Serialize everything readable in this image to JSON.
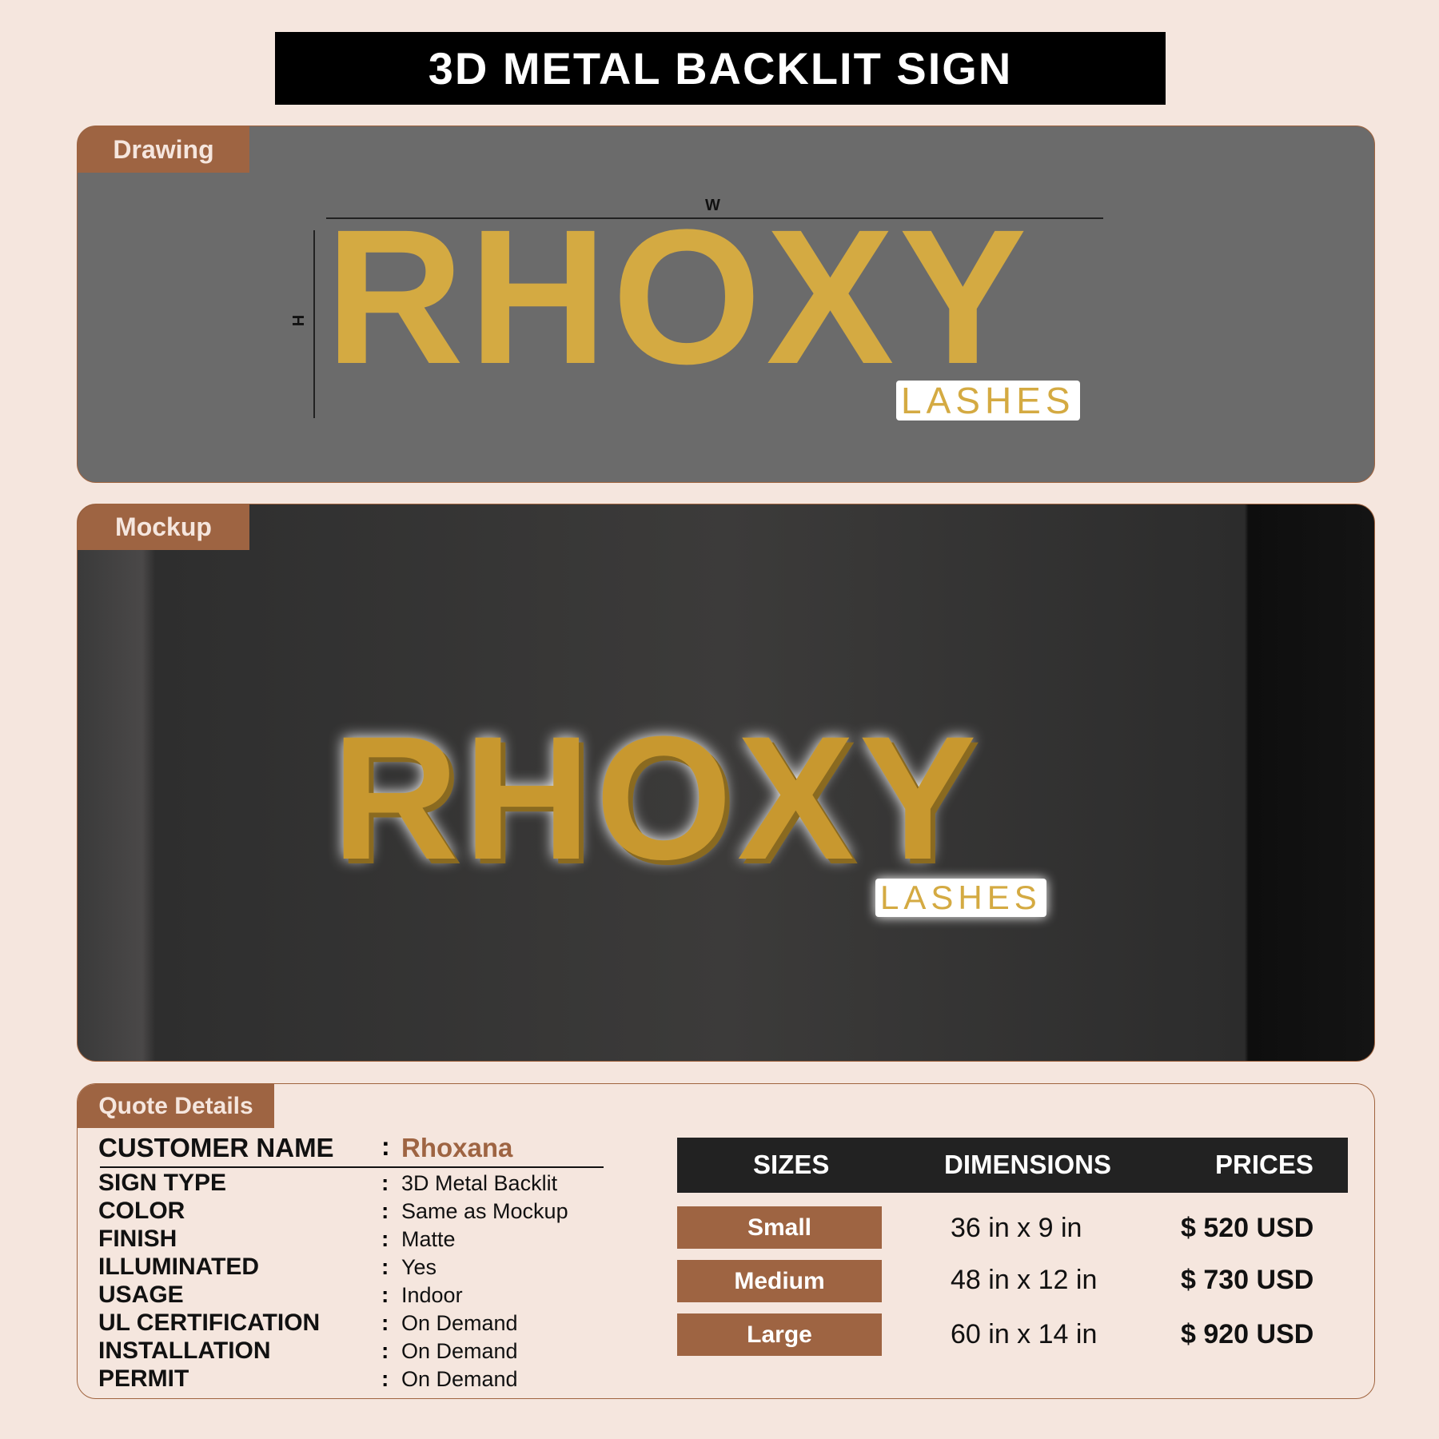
{
  "title": "3D METAL BACKLIT SIGN",
  "drawing": {
    "tab": "Drawing",
    "w_label": "W",
    "h_label": "H",
    "logo_main": "RHOXY",
    "logo_sub": "LASHES"
  },
  "mockup": {
    "tab": "Mockup",
    "logo_main": "RHOXY",
    "logo_sub": "LASHES"
  },
  "quote": {
    "tab": "Quote Details",
    "customer_label": "CUSTOMER NAME",
    "customer_value": "Rhoxana",
    "details": [
      {
        "label": "SIGN TYPE",
        "value": "3D Metal Backlit"
      },
      {
        "label": "COLOR",
        "value": "Same as Mockup"
      },
      {
        "label": "FINISH",
        "value": "Matte"
      },
      {
        "label": "ILLUMINATED",
        "value": "Yes"
      },
      {
        "label": "USAGE",
        "value": "Indoor"
      },
      {
        "label": "UL CERTIFICATION",
        "value": "On Demand"
      },
      {
        "label": "INSTALLATION",
        "value": "On Demand"
      },
      {
        "label": "PERMIT",
        "value": "On Demand"
      }
    ],
    "table": {
      "headers": [
        "SIZES",
        "DIMENSIONS",
        "PRICES"
      ],
      "rows": [
        {
          "size": "Small",
          "dimensions": "36 in x 9 in",
          "price": "$ 520 USD"
        },
        {
          "size": "Medium",
          "dimensions": "48 in x 12 in",
          "price": "$ 730 USD"
        },
        {
          "size": "Large",
          "dimensions": "60 in x 14 in",
          "price": "$ 920 USD"
        }
      ]
    }
  },
  "colors": {
    "accent": "#9e6442",
    "gold": "#d4aa42",
    "background": "#f5e6de"
  }
}
